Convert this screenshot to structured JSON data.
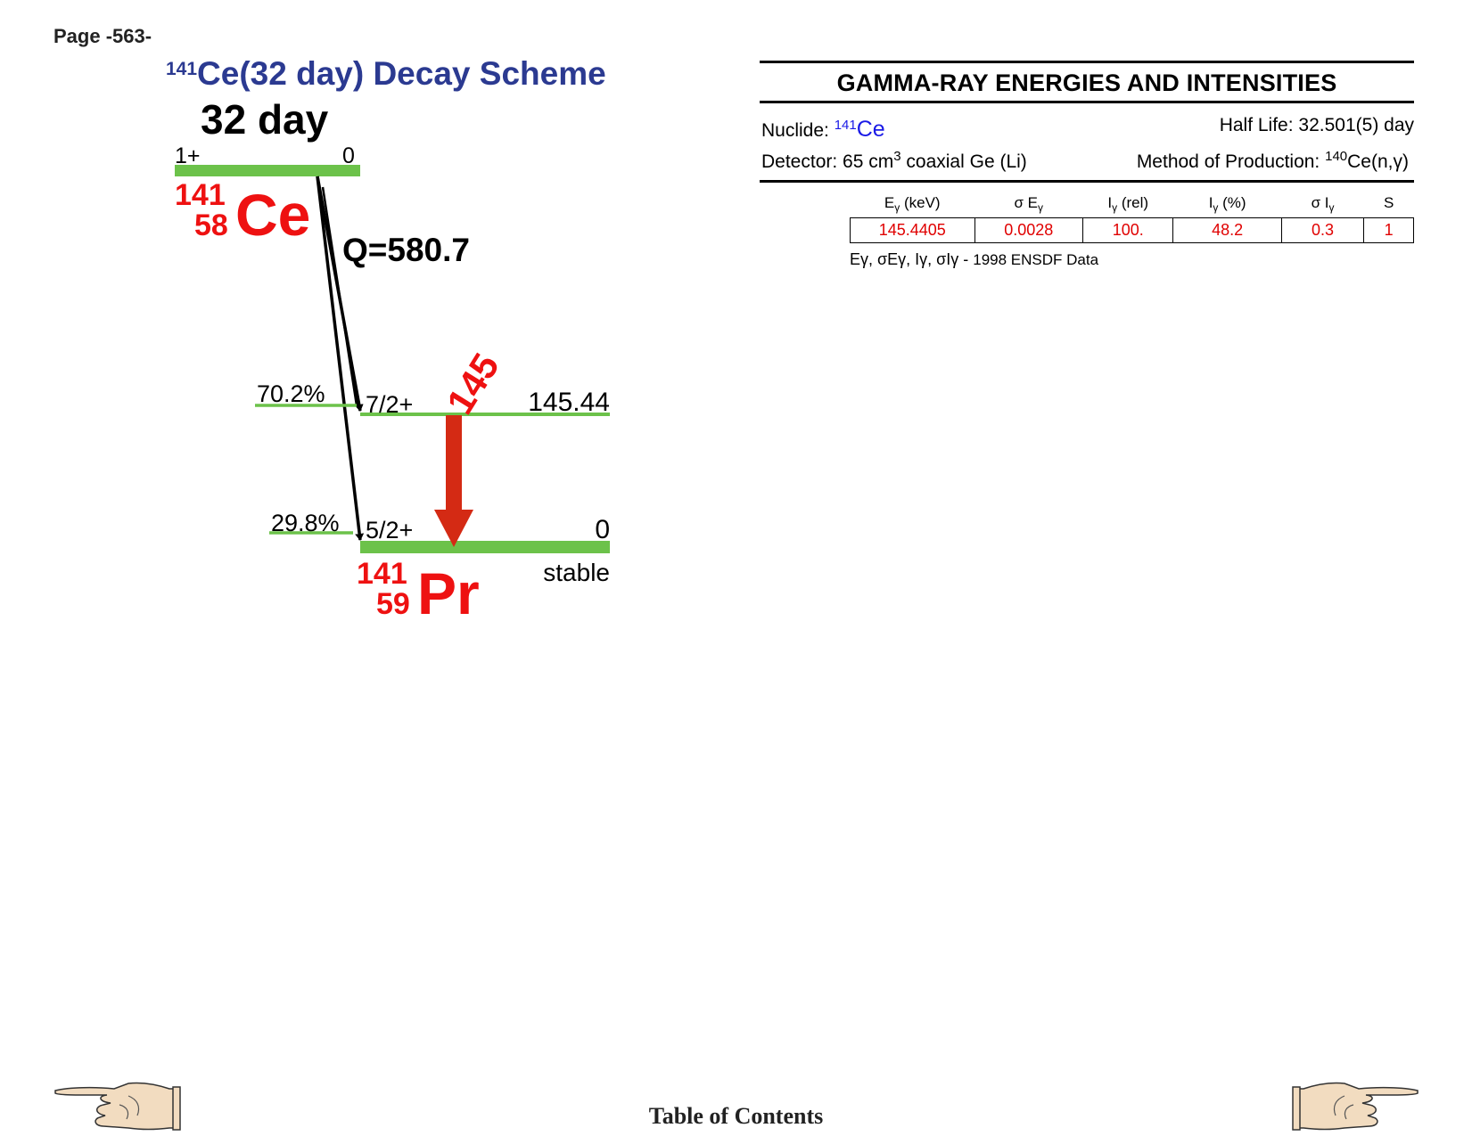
{
  "page": {
    "number_label": "Page -563-"
  },
  "scheme": {
    "title_mass": "141",
    "title_text": "Ce(32 day) Decay Scheme",
    "parent": {
      "halflife": "32 day",
      "spin": "1+",
      "energy": "0",
      "mass": "141",
      "z": "58",
      "symbol": "Ce",
      "q_value": "Q=580.7"
    },
    "daughter": {
      "mass": "141",
      "z": "59",
      "symbol": "Pr",
      "stable_label": "stable",
      "levels": [
        {
          "spin": "7/2+",
          "energy": "145.44",
          "branch": "70.2%"
        },
        {
          "spin": "5/2+",
          "energy": "0",
          "branch": "29.8%"
        }
      ]
    },
    "gamma_label": "145",
    "colors": {
      "level": "#6cc24a",
      "nuclide": "#ee1111",
      "gamma": "#d42a14",
      "title": "#2b3a91"
    }
  },
  "gamma_panel": {
    "title": "GAMMA-RAY ENERGIES AND INTENSITIES",
    "nuclide_label": "Nuclide:",
    "nuclide_mass": "141",
    "nuclide_symbol": "Ce",
    "half_life": "Half Life: 32.501(5) day",
    "detector_prefix": "Detector: 65 cm",
    "detector_sup": "3",
    "detector_suffix": " coaxial Ge (Li)",
    "production_prefix": "Method of Production: ",
    "production_sup": "140",
    "production_suffix": "Ce(n,γ)",
    "columns": [
      {
        "main": "E",
        "sub": "γ",
        "tail": " (keV)"
      },
      {
        "main": "σ E",
        "sub": "γ",
        "tail": ""
      },
      {
        "main": "I",
        "sub": "γ",
        "tail": " (rel)"
      },
      {
        "main": "I",
        "sub": "γ",
        "tail": " (%)"
      },
      {
        "main": "σ I",
        "sub": "γ",
        "tail": ""
      },
      {
        "main": "S",
        "sub": "",
        "tail": ""
      }
    ],
    "rows": [
      [
        "145.4405",
        "0.0028",
        "100.",
        "48.2",
        "0.3",
        "1"
      ]
    ],
    "footnote_symbols": "Eγ, σEγ, Iγ, σIγ -",
    "footnote_source": "1998 ENSDF Data"
  },
  "footer": {
    "toc_label": "Table of Contents"
  },
  "icons": {
    "prev": "pointing-hand-left-icon",
    "next": "pointing-hand-right-icon"
  }
}
